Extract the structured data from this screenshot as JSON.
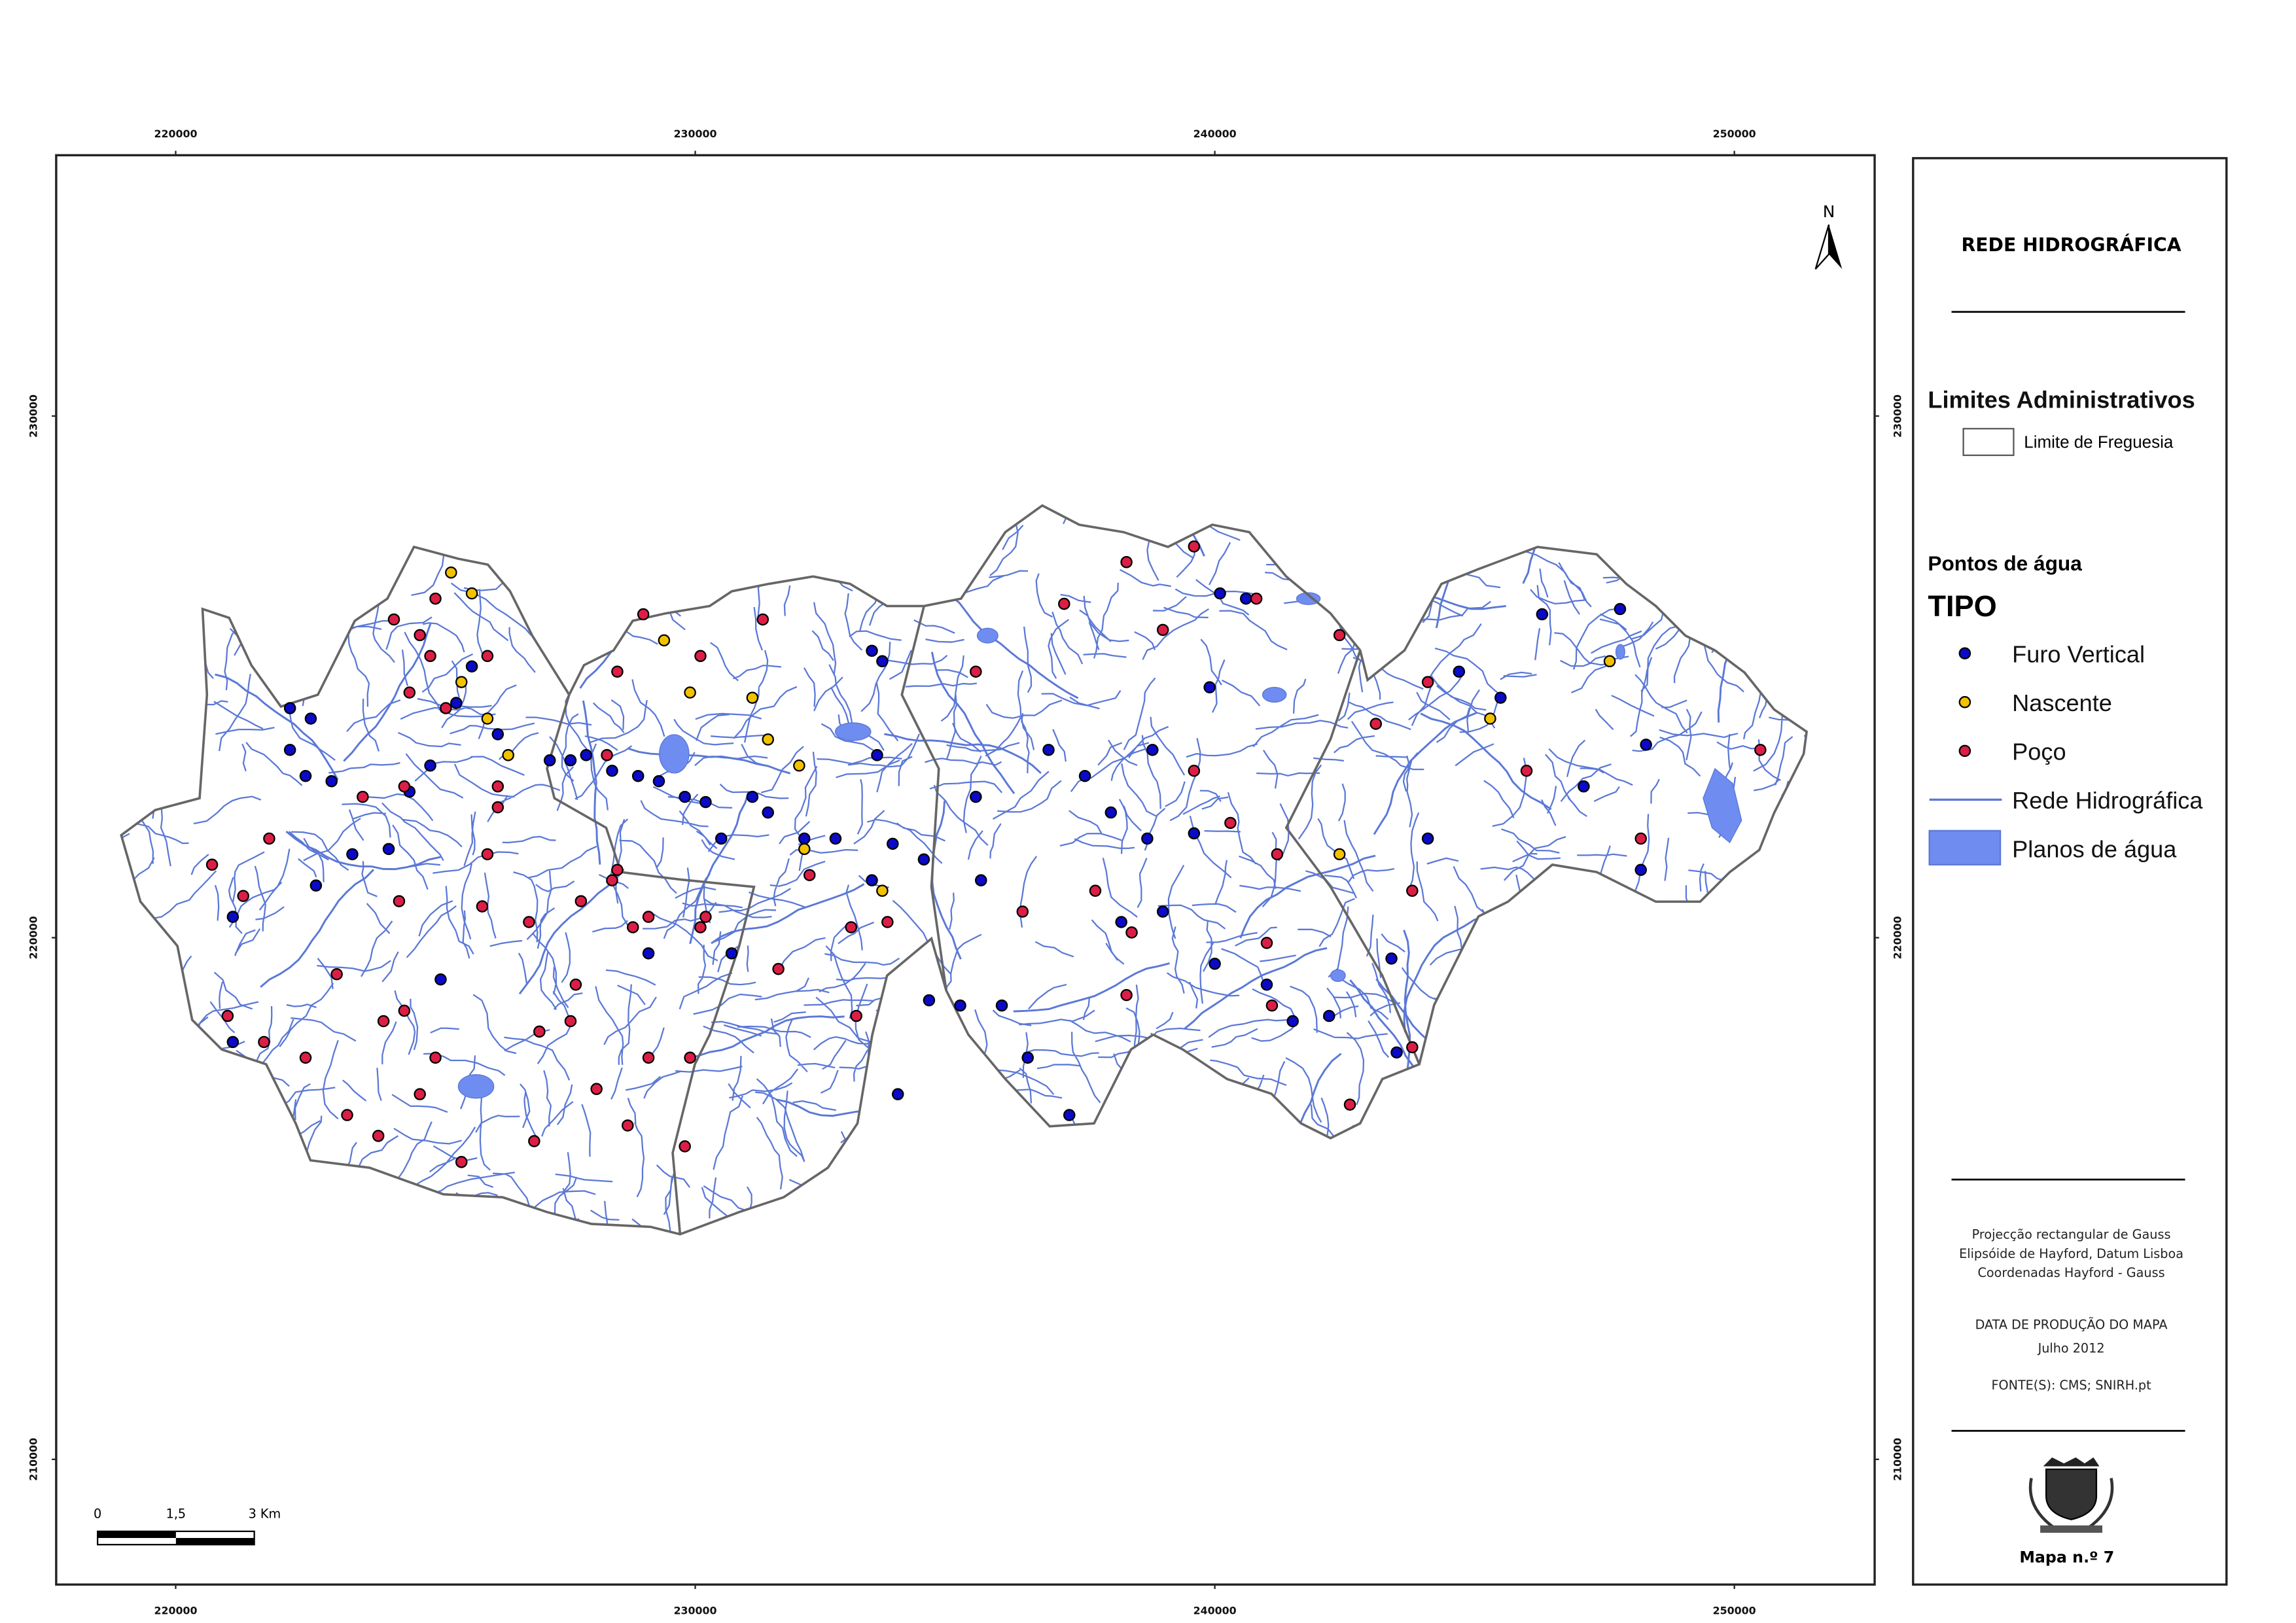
{
  "map": {
    "xlim": [
      217700,
      252700
    ],
    "ylim": [
      207600,
      235000
    ],
    "xticks": [
      220000,
      230000,
      240000,
      250000
    ],
    "yticks": [
      210000,
      220000,
      230000
    ],
    "north": "N",
    "scale_bar": [
      "0",
      "1,5",
      "3 Km"
    ],
    "point_types": [
      {
        "name": "Furo Vertical",
        "color": "#0a0ac8",
        "points": [
          [
            222200,
            224400
          ],
          [
            222600,
            224200
          ],
          [
            222200,
            223600
          ],
          [
            222500,
            223100
          ],
          [
            223000,
            223000
          ],
          [
            223400,
            221600
          ],
          [
            222700,
            221000
          ],
          [
            224100,
            221700
          ],
          [
            224900,
            223300
          ],
          [
            225400,
            224500
          ],
          [
            226200,
            223900
          ],
          [
            227200,
            223400
          ],
          [
            227600,
            223400
          ],
          [
            227900,
            223500
          ],
          [
            228400,
            223200
          ],
          [
            228900,
            223100
          ],
          [
            229300,
            223000
          ],
          [
            229800,
            222700
          ],
          [
            230200,
            222600
          ],
          [
            230500,
            221900
          ],
          [
            231100,
            222700
          ],
          [
            231400,
            222400
          ],
          [
            232100,
            221900
          ],
          [
            232700,
            221900
          ],
          [
            233400,
            225500
          ],
          [
            233600,
            225300
          ],
          [
            233500,
            223500
          ],
          [
            233800,
            221800
          ],
          [
            234400,
            221500
          ],
          [
            235400,
            222700
          ],
          [
            235500,
            221100
          ],
          [
            236800,
            223600
          ],
          [
            237500,
            223100
          ],
          [
            238000,
            222400
          ],
          [
            238700,
            221900
          ],
          [
            238800,
            223600
          ],
          [
            239600,
            222000
          ],
          [
            239900,
            224800
          ],
          [
            240100,
            226600
          ],
          [
            240600,
            226500
          ],
          [
            241000,
            219100
          ],
          [
            241500,
            218400
          ],
          [
            242200,
            218500
          ],
          [
            243400,
            219600
          ],
          [
            243500,
            217800
          ],
          [
            244100,
            221900
          ],
          [
            244700,
            225100
          ],
          [
            245500,
            224600
          ],
          [
            246300,
            226200
          ],
          [
            247800,
            226300
          ],
          [
            248300,
            223700
          ],
          [
            248200,
            221300
          ],
          [
            247100,
            222900
          ],
          [
            236400,
            217700
          ],
          [
            237200,
            216600
          ],
          [
            233900,
            217000
          ],
          [
            235900,
            218700
          ],
          [
            235100,
            218700
          ],
          [
            234500,
            218800
          ],
          [
            229100,
            219700
          ],
          [
            230700,
            219700
          ],
          [
            221100,
            218000
          ],
          [
            221100,
            220400
          ],
          [
            224500,
            222800
          ],
          [
            225100,
            219200
          ],
          [
            225700,
            225200
          ],
          [
            233400,
            221100
          ],
          [
            239000,
            220500
          ],
          [
            240000,
            219500
          ],
          [
            238200,
            220300
          ]
        ]
      },
      {
        "name": "Nascente",
        "color": "#f2c200",
        "points": [
          [
            225300,
            227000
          ],
          [
            225700,
            226600
          ],
          [
            229400,
            225700
          ],
          [
            225500,
            224900
          ],
          [
            226000,
            224200
          ],
          [
            226400,
            223500
          ],
          [
            231100,
            224600
          ],
          [
            231400,
            223800
          ],
          [
            232000,
            223300
          ],
          [
            232100,
            221700
          ],
          [
            233600,
            220900
          ],
          [
            242400,
            221600
          ],
          [
            247600,
            225300
          ],
          [
            245300,
            224200
          ],
          [
            229900,
            224700
          ]
        ]
      },
      {
        "name": "Poço",
        "color": "#dc1e46",
        "points": [
          [
            224200,
            226100
          ],
          [
            224700,
            225800
          ],
          [
            224900,
            225400
          ],
          [
            225000,
            226500
          ],
          [
            224500,
            224700
          ],
          [
            225200,
            224400
          ],
          [
            226000,
            225400
          ],
          [
            224400,
            222900
          ],
          [
            223600,
            222700
          ],
          [
            221800,
            221900
          ],
          [
            220700,
            221400
          ],
          [
            221300,
            220800
          ],
          [
            223100,
            219300
          ],
          [
            224000,
            218400
          ],
          [
            224400,
            218600
          ],
          [
            222500,
            217700
          ],
          [
            221700,
            218000
          ],
          [
            221000,
            218500
          ],
          [
            223300,
            216600
          ],
          [
            223900,
            216200
          ],
          [
            224700,
            217000
          ],
          [
            225000,
            217700
          ],
          [
            225500,
            215700
          ],
          [
            226900,
            216100
          ],
          [
            228100,
            217100
          ],
          [
            228700,
            216400
          ],
          [
            229100,
            217700
          ],
          [
            229900,
            217700
          ],
          [
            229800,
            216000
          ],
          [
            229000,
            226200
          ],
          [
            231300,
            226100
          ],
          [
            230100,
            225400
          ],
          [
            228500,
            225100
          ],
          [
            228300,
            223500
          ],
          [
            226200,
            222500
          ],
          [
            226000,
            221600
          ],
          [
            225900,
            220600
          ],
          [
            226800,
            220300
          ],
          [
            227800,
            220700
          ],
          [
            228400,
            221100
          ],
          [
            228800,
            220200
          ],
          [
            229100,
            220400
          ],
          [
            230200,
            220400
          ],
          [
            231600,
            219400
          ],
          [
            233000,
            220200
          ],
          [
            233100,
            218500
          ],
          [
            233700,
            220300
          ],
          [
            235400,
            225100
          ],
          [
            237100,
            226400
          ],
          [
            238300,
            227200
          ],
          [
            239600,
            227500
          ],
          [
            239000,
            225900
          ],
          [
            240800,
            226500
          ],
          [
            242400,
            225800
          ],
          [
            243100,
            224100
          ],
          [
            244100,
            224900
          ],
          [
            246000,
            223200
          ],
          [
            248200,
            221900
          ],
          [
            250500,
            223600
          ],
          [
            240300,
            222200
          ],
          [
            241200,
            221600
          ],
          [
            241000,
            219900
          ],
          [
            241100,
            218700
          ],
          [
            243800,
            220900
          ],
          [
            243800,
            217900
          ],
          [
            242600,
            216800
          ],
          [
            237700,
            220900
          ],
          [
            236300,
            220500
          ],
          [
            238300,
            218900
          ],
          [
            238400,
            220100
          ],
          [
            239600,
            223200
          ],
          [
            228500,
            221300
          ],
          [
            232200,
            221200
          ],
          [
            230100,
            220200
          ],
          [
            227700,
            219100
          ],
          [
            227000,
            218200
          ],
          [
            227600,
            218400
          ],
          [
            224300,
            220700
          ],
          [
            226200,
            222900
          ]
        ]
      }
    ]
  },
  "legend": {
    "title": "REDE HIDROGRÁFICA",
    "admin_heading": "Limites Administrativos",
    "admin_item": "Limite de Freguesia",
    "points_heading": "Pontos de água",
    "points_subheading": "TIPO",
    "river_item": "Rede Hidrográfica",
    "river_color": "#5b78d6",
    "water_item": "Planos de água",
    "water_color": "#6f8cf0"
  },
  "notes": [
    "Projecção rectangular de Gauss",
    "Elipsóide de Hayford, Datum Lisboa",
    "Coordenadas Hayford - Gauss",
    "DATA DE PRODUÇÃO DO MAPA",
    "Julho 2012",
    "FONTE(S): CMS; SNIRH.pt"
  ],
  "map_number": "Mapa n.º 7"
}
